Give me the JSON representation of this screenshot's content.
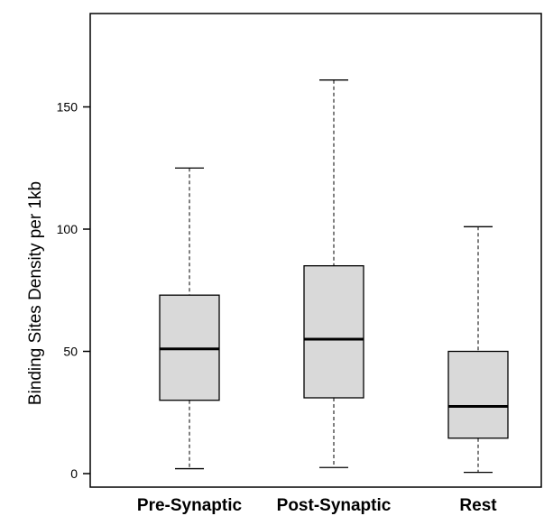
{
  "chart_data": {
    "type": "boxplot",
    "title": "",
    "xlabel": "",
    "ylabel": "Binding Sites Density per 1kb",
    "ylim": [
      -5,
      190
    ],
    "yticks": [
      0,
      50,
      100,
      150
    ],
    "ytick_labels": [
      "0",
      "50",
      "100",
      "150"
    ],
    "categories": [
      "Pre-Synaptic",
      "Post-Synaptic",
      "Rest"
    ],
    "boxes": [
      {
        "label": "Pre-Synaptic",
        "min": 2,
        "q1": 30,
        "median": 51,
        "q3": 73,
        "max": 125
      },
      {
        "label": "Post-Synaptic",
        "min": 2.5,
        "q1": 31,
        "median": 55,
        "q3": 85,
        "max": 161
      },
      {
        "label": "Rest",
        "min": 0.5,
        "q1": 14.5,
        "median": 27.5,
        "q3": 50,
        "max": 101
      }
    ],
    "box_color": "#d9d9d9",
    "median_color": "#000000",
    "grid": false,
    "legend": false
  }
}
